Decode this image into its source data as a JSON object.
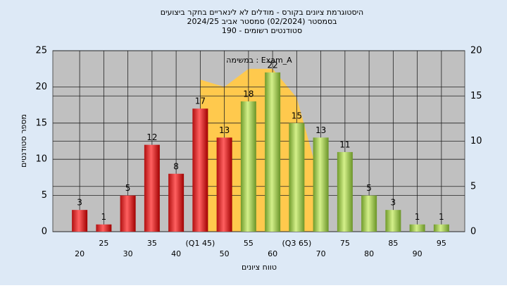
{
  "chart_data": {
    "type": "bar",
    "title": "היסטוגרמת ציונים בקורס - מודלים לא לינאריים בחקר ביצועים",
    "subtitle": "בסמסטר  (02/2024)  סמסטר אביב 2024/25",
    "subtitle2": "סטודנטים רשומים - 190",
    "annotation": "במשימה : Exam_A",
    "xlabel": "טווח ציונים",
    "ylabel": "מספר סטודנטים",
    "categories": [
      "20",
      "25",
      "30",
      "35",
      "40",
      "(Q1 45)",
      "50",
      "55",
      "60",
      "(Q3 65)",
      "70",
      "75",
      "80",
      "85",
      "90",
      "95"
    ],
    "values": [
      3,
      1,
      5,
      12,
      8,
      17,
      13,
      18,
      22,
      15,
      13,
      11,
      5,
      3,
      1,
      1
    ],
    "colors": [
      "red",
      "red",
      "red",
      "red",
      "red",
      "red",
      "red",
      "green",
      "green",
      "green",
      "green",
      "green",
      "green",
      "green",
      "green",
      "green"
    ],
    "area": {
      "color": "#ffc94d",
      "values": [
        null,
        null,
        null,
        null,
        null,
        21,
        20,
        22.5,
        22.5,
        18.5,
        6.5,
        null,
        null,
        null,
        null,
        null
      ]
    },
    "ylim": [
      0,
      25
    ],
    "yticks": [
      0,
      5,
      10,
      15,
      20,
      25
    ],
    "y2lim": [
      0,
      20
    ],
    "y2ticks": [
      0,
      5,
      10,
      15,
      20
    ],
    "grid": true
  }
}
